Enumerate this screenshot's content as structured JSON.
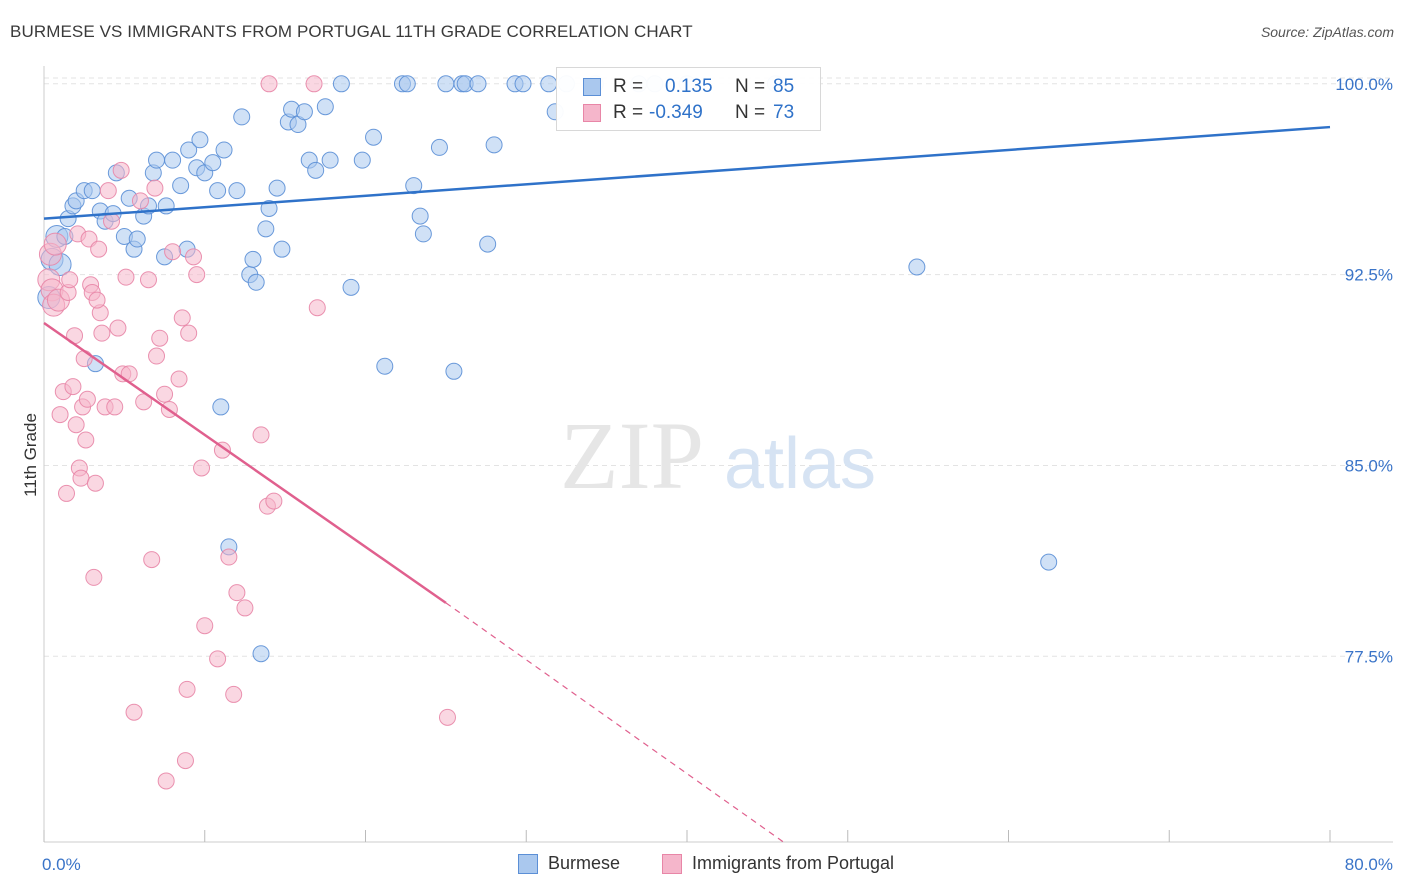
{
  "title": "BURMESE VS IMMIGRANTS FROM PORTUGAL 11TH GRADE CORRELATION CHART",
  "source": "Source: ZipAtlas.com",
  "watermark": {
    "zip": "ZIP",
    "atlas": "atlas"
  },
  "legend": {
    "r_label": "R =",
    "n_label": "N =",
    "rows": [
      {
        "r": "0.135",
        "n": "85"
      },
      {
        "r": "-0.349",
        "n": "73"
      }
    ]
  },
  "bottom_legend": [
    "Burmese",
    "Immigrants from Portugal"
  ],
  "colors": {
    "burmese_fill": "#aac8ee",
    "burmese_stroke": "#5b8fd6",
    "burmese_line": "#2f72c9",
    "portugal_fill": "#f5b6cb",
    "portugal_stroke": "#e886a7",
    "portugal_line": "#e0608e",
    "axis_blue": "#3a74c8",
    "grid": "#e3e3e3"
  },
  "chart_data": {
    "type": "scatter",
    "title": "BURMESE VS IMMIGRANTS FROM PORTUGAL 11TH GRADE CORRELATION CHART",
    "xlabel": "",
    "ylabel": "11th Grade",
    "xlim": [
      0,
      80
    ],
    "ylim": [
      70.2,
      100.7
    ],
    "x_tick_labels": [
      "0.0%",
      "80.0%"
    ],
    "y_ticks": [
      77.5,
      85.0,
      92.5,
      100.0
    ],
    "y_tick_labels": [
      "77.5%",
      "85.0%",
      "92.5%",
      "100.0%"
    ],
    "grid": true,
    "legend_position": "top-center",
    "series": [
      {
        "name": "Burmese",
        "r": 0.135,
        "n": 85,
        "trend": {
          "x": [
            0,
            80
          ],
          "y": [
            94.7,
            98.3
          ]
        },
        "points": [
          [
            0.3,
            91.6
          ],
          [
            0.5,
            93.1
          ],
          [
            0.8,
            94.0
          ],
          [
            1.0,
            92.9
          ],
          [
            1.3,
            94.0
          ],
          [
            1.5,
            94.7
          ],
          [
            1.8,
            95.2
          ],
          [
            2.0,
            95.4
          ],
          [
            2.5,
            95.8
          ],
          [
            3.0,
            95.8
          ],
          [
            3.2,
            89.0
          ],
          [
            3.5,
            95.0
          ],
          [
            3.8,
            94.6
          ],
          [
            4.3,
            94.9
          ],
          [
            4.5,
            96.5
          ],
          [
            5.0,
            94.0
          ],
          [
            5.3,
            95.5
          ],
          [
            5.6,
            93.5
          ],
          [
            5.8,
            93.9
          ],
          [
            6.2,
            94.8
          ],
          [
            6.5,
            95.2
          ],
          [
            6.8,
            96.5
          ],
          [
            7.0,
            97.0
          ],
          [
            7.5,
            93.2
          ],
          [
            7.6,
            95.2
          ],
          [
            8.0,
            97.0
          ],
          [
            8.5,
            96.0
          ],
          [
            8.9,
            93.5
          ],
          [
            9.0,
            97.4
          ],
          [
            9.5,
            96.7
          ],
          [
            9.7,
            97.8
          ],
          [
            10.0,
            96.5
          ],
          [
            10.5,
            96.9
          ],
          [
            10.8,
            95.8
          ],
          [
            11.0,
            87.3
          ],
          [
            11.2,
            97.4
          ],
          [
            11.5,
            81.8
          ],
          [
            12.0,
            95.8
          ],
          [
            12.3,
            98.7
          ],
          [
            12.8,
            92.5
          ],
          [
            13.2,
            92.2
          ],
          [
            13.0,
            93.1
          ],
          [
            13.5,
            77.6
          ],
          [
            13.8,
            94.3
          ],
          [
            14.0,
            95.1
          ],
          [
            14.5,
            95.9
          ],
          [
            14.8,
            93.5
          ],
          [
            15.2,
            98.5
          ],
          [
            15.4,
            99.0
          ],
          [
            15.8,
            98.4
          ],
          [
            16.2,
            98.9
          ],
          [
            16.5,
            97.0
          ],
          [
            16.9,
            96.6
          ],
          [
            17.5,
            99.1
          ],
          [
            17.8,
            97.0
          ],
          [
            18.5,
            100.0
          ],
          [
            19.1,
            92.0
          ],
          [
            19.8,
            97.0
          ],
          [
            20.5,
            97.9
          ],
          [
            21.2,
            88.9
          ],
          [
            22.3,
            100.0
          ],
          [
            22.6,
            100.0
          ],
          [
            23.0,
            96.0
          ],
          [
            23.4,
            94.8
          ],
          [
            23.6,
            94.1
          ],
          [
            24.6,
            97.5
          ],
          [
            25.0,
            100.0
          ],
          [
            25.5,
            88.7
          ],
          [
            26.0,
            100.0
          ],
          [
            26.2,
            100.0
          ],
          [
            27.0,
            100.0
          ],
          [
            27.6,
            93.7
          ],
          [
            28.0,
            97.6
          ],
          [
            29.3,
            100.0
          ],
          [
            29.8,
            100.0
          ],
          [
            31.4,
            100.0
          ],
          [
            31.8,
            98.9
          ],
          [
            32.5,
            100.0
          ],
          [
            34.3,
            100.0
          ],
          [
            37.0,
            100.0
          ],
          [
            38.0,
            100.0
          ],
          [
            40.0,
            100.0
          ],
          [
            45.5,
            100.0
          ],
          [
            54.3,
            92.8
          ],
          [
            62.5,
            81.2
          ]
        ]
      },
      {
        "name": "Immigrants from Portugal",
        "r": -0.349,
        "n": 73,
        "trend": {
          "x": [
            0,
            25
          ],
          "y": [
            90.6,
            79.6
          ]
        },
        "trend_extension": {
          "x": [
            25,
            46
          ],
          "y": [
            79.6,
            70.2
          ]
        },
        "points": [
          [
            0.3,
            92.3
          ],
          [
            0.4,
            93.3
          ],
          [
            0.5,
            91.9
          ],
          [
            0.6,
            91.3
          ],
          [
            0.7,
            93.7
          ],
          [
            0.9,
            91.5
          ],
          [
            1.0,
            87.0
          ],
          [
            1.2,
            87.9
          ],
          [
            1.4,
            83.9
          ],
          [
            1.5,
            91.8
          ],
          [
            1.6,
            92.3
          ],
          [
            1.8,
            88.1
          ],
          [
            1.9,
            90.1
          ],
          [
            2.0,
            86.6
          ],
          [
            2.1,
            94.1
          ],
          [
            2.2,
            84.9
          ],
          [
            2.3,
            84.5
          ],
          [
            2.4,
            87.3
          ],
          [
            2.5,
            89.2
          ],
          [
            2.7,
            87.6
          ],
          [
            2.8,
            93.9
          ],
          [
            2.9,
            92.1
          ],
          [
            3.0,
            91.8
          ],
          [
            3.1,
            80.6
          ],
          [
            3.2,
            84.3
          ],
          [
            3.4,
            93.5
          ],
          [
            3.5,
            91.0
          ],
          [
            3.6,
            90.2
          ],
          [
            3.8,
            87.3
          ],
          [
            4.0,
            95.8
          ],
          [
            4.2,
            94.6
          ],
          [
            4.4,
            87.3
          ],
          [
            4.6,
            90.4
          ],
          [
            4.8,
            96.6
          ],
          [
            4.9,
            88.6
          ],
          [
            5.1,
            92.4
          ],
          [
            5.3,
            88.6
          ],
          [
            5.6,
            75.3
          ],
          [
            6.0,
            95.4
          ],
          [
            6.2,
            87.5
          ],
          [
            6.5,
            92.3
          ],
          [
            6.7,
            81.3
          ],
          [
            6.9,
            95.9
          ],
          [
            7.0,
            89.3
          ],
          [
            7.2,
            90.0
          ],
          [
            7.5,
            87.8
          ],
          [
            7.6,
            72.6
          ],
          [
            7.8,
            87.2
          ],
          [
            8.0,
            93.4
          ],
          [
            8.4,
            88.4
          ],
          [
            8.6,
            90.8
          ],
          [
            8.8,
            73.4
          ],
          [
            8.9,
            76.2
          ],
          [
            9.0,
            90.2
          ],
          [
            9.3,
            93.2
          ],
          [
            9.5,
            92.5
          ],
          [
            9.8,
            84.9
          ],
          [
            10.0,
            78.7
          ],
          [
            10.8,
            77.4
          ],
          [
            11.1,
            85.6
          ],
          [
            11.5,
            81.4
          ],
          [
            11.8,
            76.0
          ],
          [
            12.0,
            80.0
          ],
          [
            12.5,
            79.4
          ],
          [
            13.5,
            86.2
          ],
          [
            13.9,
            83.4
          ],
          [
            14.3,
            83.6
          ],
          [
            14.0,
            100.0
          ],
          [
            16.8,
            100.0
          ],
          [
            17.0,
            91.2
          ],
          [
            25.1,
            75.1
          ],
          [
            3.3,
            91.5
          ],
          [
            2.6,
            86.0
          ]
        ]
      }
    ]
  }
}
